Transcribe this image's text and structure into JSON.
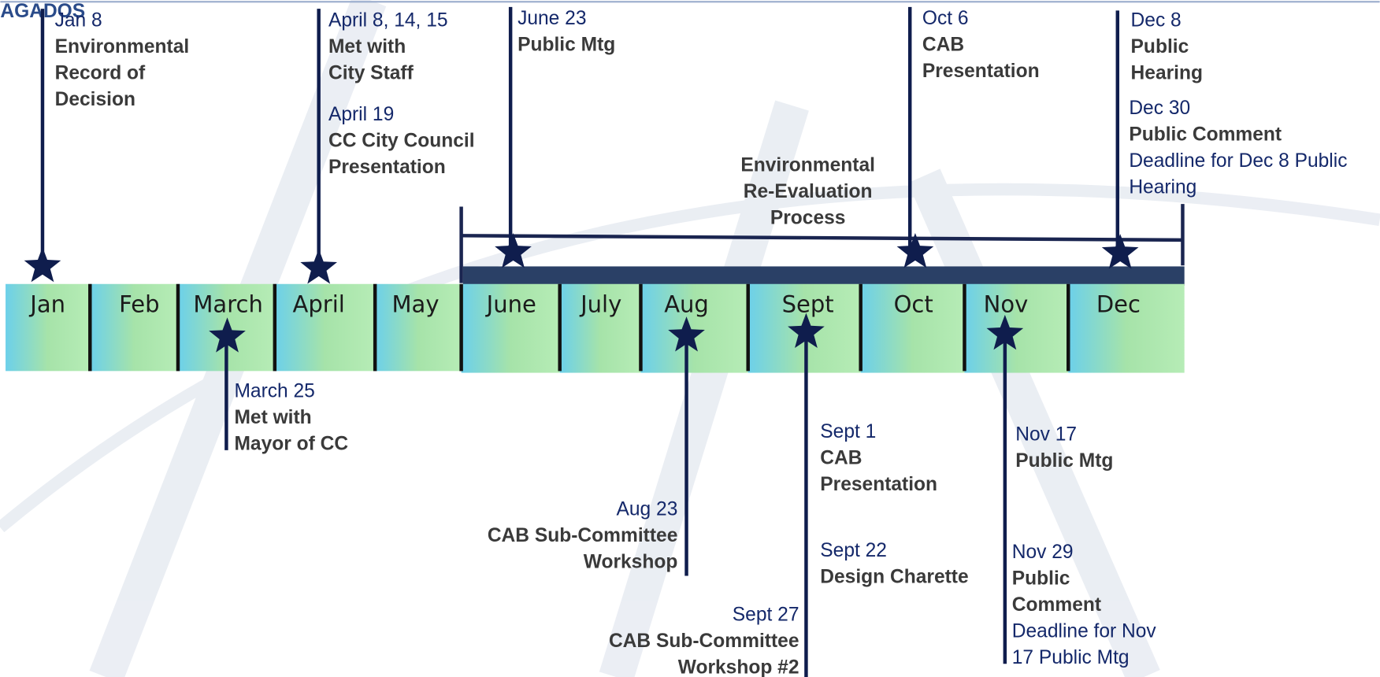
{
  "logo": "AGADOS",
  "months": [
    "Jan",
    "Feb",
    "March",
    "April",
    "May",
    "June",
    "July",
    "Aug",
    "Sept",
    "Oct",
    "Nov",
    "Dec"
  ],
  "process_label": [
    "Environmental",
    "Re-Evaluation",
    "Process"
  ],
  "events": [
    {
      "date": "Jan 8",
      "title": [
        "Environmental",
        "Record of",
        "Decision"
      ]
    },
    {
      "date": "April 8, 14, 15",
      "title": [
        "Met with",
        "City Staff"
      ]
    },
    {
      "date": "April 19",
      "title": [
        "CC City Council",
        "Presentation"
      ]
    },
    {
      "date": "June 23",
      "title": [
        "Public Mtg"
      ]
    },
    {
      "date": "Oct 6",
      "title": [
        "CAB",
        "Presentation"
      ]
    },
    {
      "date": "Dec 8",
      "title": [
        "Public",
        "Hearing"
      ]
    },
    {
      "date": "Dec 30",
      "title": [
        "Public Comment"
      ],
      "note": [
        "Deadline for Dec 8 Public",
        "Hearing"
      ]
    },
    {
      "date": "March 25",
      "title": [
        "Met with",
        "Mayor of CC"
      ]
    },
    {
      "date": "Aug 23",
      "title": [
        "CAB Sub-Committee",
        "Workshop"
      ]
    },
    {
      "date": "Sept 1",
      "title": [
        "CAB",
        "Presentation"
      ]
    },
    {
      "date": "Sept 22",
      "title": [
        "Design Charette"
      ]
    },
    {
      "date": "Sept 27",
      "title": [
        "CAB Sub-Committee",
        "Workshop #2"
      ]
    },
    {
      "date": "Nov 17",
      "title": [
        "Public Mtg"
      ]
    },
    {
      "date": "Nov 29",
      "title": [
        "Public",
        "Comment"
      ],
      "note": [
        "Deadline for Nov",
        "17 Public Mtg"
      ]
    }
  ]
}
